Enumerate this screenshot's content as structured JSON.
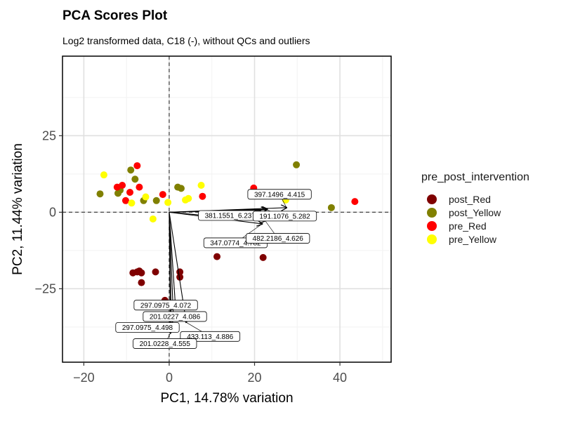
{
  "title": "PCA Scores Plot",
  "subtitle": "Log2 transformed data, C18 (-), without QCs and outliers",
  "legend": {
    "title": "pre_post_intervention",
    "items": [
      {
        "label": "post_Red",
        "color": "#7f0000"
      },
      {
        "label": "post_Yellow",
        "color": "#808000"
      },
      {
        "label": "pre_Red",
        "color": "#ff0000"
      },
      {
        "label": "pre_Yellow",
        "color": "#ffff00"
      }
    ]
  },
  "chart_data": {
    "type": "scatter",
    "title": "PCA Scores Plot",
    "subtitle": "Log2 transformed data, C18 (-), without QCs and outliers",
    "xlabel": "PC1, 14.78% variation",
    "ylabel": "PC2, 11.44% variation",
    "xlim": [
      -25,
      52
    ],
    "ylim": [
      -49,
      51
    ],
    "xticks": [
      -20,
      0,
      20,
      40
    ],
    "yticks": [
      -25,
      0,
      25
    ],
    "grid": true,
    "reference_lines": {
      "x": 0,
      "y": 0,
      "style": "dashed"
    },
    "legend_position": "right",
    "series": [
      {
        "name": "post_Red",
        "color": "#7f0000",
        "points": [
          [
            -8.5,
            -19.8
          ],
          [
            -7.5,
            -19.5
          ],
          [
            -7.0,
            -19.2
          ],
          [
            -6.5,
            -19.8
          ],
          [
            -6.5,
            -23.0
          ],
          [
            -3.2,
            -19.5
          ],
          [
            -1.0,
            -28.8
          ],
          [
            2.5,
            -19.5
          ],
          [
            2.5,
            -21.2
          ],
          [
            11.2,
            -14.5
          ],
          [
            22.0,
            -14.8
          ]
        ]
      },
      {
        "name": "post_Yellow",
        "color": "#808000",
        "points": [
          [
            -16.2,
            6.0
          ],
          [
            -12.0,
            6.2
          ],
          [
            -11.5,
            7.2
          ],
          [
            -9.0,
            13.8
          ],
          [
            -8.0,
            10.8
          ],
          [
            -6.0,
            3.8
          ],
          [
            -3.0,
            3.8
          ],
          [
            2.0,
            8.2
          ],
          [
            2.8,
            7.8
          ],
          [
            29.8,
            15.5
          ],
          [
            38.0,
            1.5
          ]
        ]
      },
      {
        "name": "pre_Red",
        "color": "#ff0000",
        "points": [
          [
            -12.2,
            8.2
          ],
          [
            -11.0,
            8.8
          ],
          [
            -10.2,
            3.8
          ],
          [
            -9.2,
            6.5
          ],
          [
            -7.5,
            15.2
          ],
          [
            -7.0,
            8.2
          ],
          [
            -1.5,
            5.8
          ],
          [
            7.8,
            5.2
          ],
          [
            19.8,
            7.9
          ],
          [
            43.5,
            3.5
          ]
        ]
      },
      {
        "name": "pre_Yellow",
        "color": "#ffff00",
        "points": [
          [
            -15.3,
            12.2
          ],
          [
            -8.8,
            3.0
          ],
          [
            -5.5,
            5.0
          ],
          [
            -3.8,
            -2.2
          ],
          [
            -0.3,
            3.2
          ],
          [
            3.8,
            4.0
          ],
          [
            4.5,
            4.5
          ],
          [
            7.5,
            8.8
          ],
          [
            27.3,
            4.0
          ]
        ]
      }
    ],
    "loadings": [
      {
        "label": "397.1496_4.415",
        "x": 27.5,
        "y": 1.5
      },
      {
        "label": "381.1551_6.237",
        "x": 23.0,
        "y": 1.0
      },
      {
        "label": "191.1076_5.282",
        "x": 22.8,
        "y": 0.8
      },
      {
        "label": "347.0774_4.782",
        "x": 21.8,
        "y": -3.8
      },
      {
        "label": "482.2186_4.626",
        "x": 22.5,
        "y": -2.8
      },
      {
        "label": "297.0975_4.072",
        "x": 1.5,
        "y": -31.5
      },
      {
        "label": "201.0227_4.086",
        "x": 1.0,
        "y": -35.0
      },
      {
        "label": "297.0975_4.498",
        "x": 0.5,
        "y": -36.5
      },
      {
        "label": "433.113_4.886",
        "x": 4.0,
        "y": -36.0
      },
      {
        "label": "201.0228_4.555",
        "x": 0.3,
        "y": -39.5
      }
    ]
  }
}
